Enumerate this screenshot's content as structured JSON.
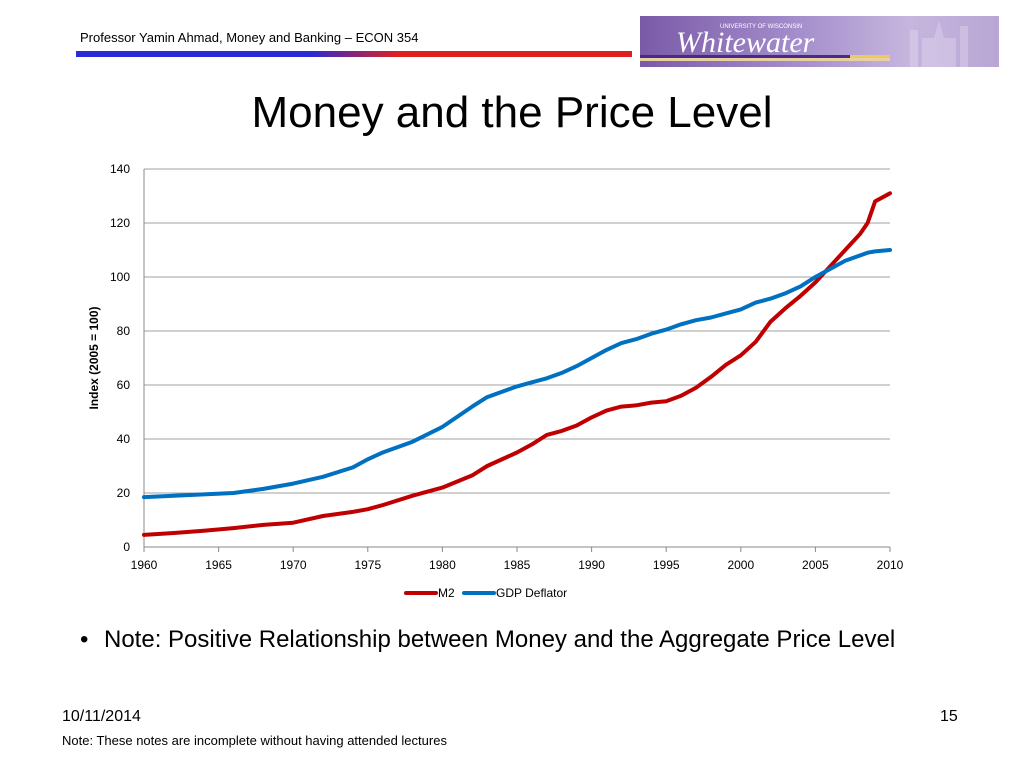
{
  "header": {
    "text": "Professor Yamin Ahmad, Money and Banking – ECON 354",
    "logo_small": "UNIVERSITY OF WISCONSIN",
    "logo_main": "Whitewater"
  },
  "slide": {
    "title": "Money and the Price Level",
    "bullet": "Note: Positive Relationship between Money and the Aggregate Price Level",
    "date": "10/11/2014",
    "slide_number": "15",
    "footnote": "Note: These notes are incomplete without having attended lectures"
  },
  "chart_data": {
    "type": "line",
    "title": "",
    "xlabel": "",
    "ylabel": "Index (2005 = 100)",
    "xlim": [
      1960,
      2010
    ],
    "ylim": [
      0,
      140
    ],
    "xticks": [
      "1960",
      "1965",
      "1970",
      "1975",
      "1980",
      "1985",
      "1990",
      "1995",
      "2000",
      "2005",
      "2010"
    ],
    "yticks": [
      "0",
      "20",
      "40",
      "60",
      "80",
      "100",
      "120",
      "140"
    ],
    "grid": "horizontal",
    "legend": "bottom",
    "x": [
      1960,
      1962,
      1964,
      1966,
      1968,
      1970,
      1972,
      1974,
      1975,
      1976,
      1978,
      1980,
      1982,
      1983,
      1985,
      1986,
      1987,
      1988,
      1989,
      1990,
      1991,
      1992,
      1993,
      1994,
      1995,
      1996,
      1997,
      1998,
      1999,
      2000,
      2001,
      2002,
      2003,
      2004,
      2005,
      2006,
      2007,
      2008,
      2008.5,
      2009,
      2010
    ],
    "series": [
      {
        "name": "M2",
        "color": "#c00000",
        "values": [
          4.5,
          5.2,
          6.0,
          7.0,
          8.2,
          9.0,
          11.5,
          13.0,
          14.0,
          15.5,
          19.0,
          22.0,
          26.5,
          30.0,
          35.0,
          38.0,
          41.5,
          43.0,
          45.0,
          48.0,
          50.5,
          52.0,
          52.5,
          53.5,
          54.0,
          56.0,
          59.0,
          63.0,
          67.5,
          71.0,
          76.0,
          83.5,
          88.5,
          93.0,
          98.0,
          104.0,
          110.0,
          116.0,
          120.0,
          128.0,
          131.0
        ]
      },
      {
        "name": "GDP Deflator",
        "color": "#0070c0",
        "values": [
          18.5,
          19.0,
          19.5,
          20.0,
          21.5,
          23.5,
          26.0,
          29.5,
          32.5,
          35.0,
          39.0,
          44.5,
          52.0,
          55.5,
          59.5,
          61.0,
          62.5,
          64.5,
          67.0,
          70.0,
          73.0,
          75.5,
          77.0,
          79.0,
          80.5,
          82.5,
          84.0,
          85.0,
          86.5,
          88.0,
          90.5,
          92.0,
          94.0,
          96.5,
          100.0,
          103.0,
          106.0,
          108.0,
          109.0,
          109.5,
          110.0
        ]
      }
    ]
  }
}
